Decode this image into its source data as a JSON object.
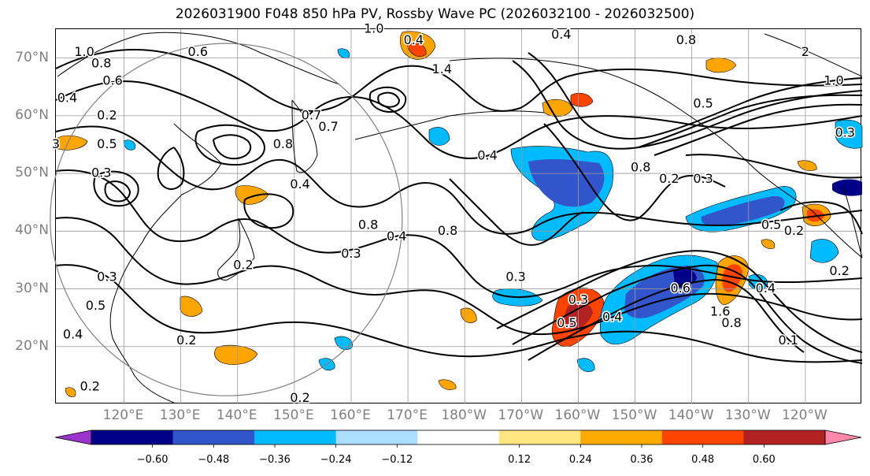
{
  "title": "2026031900 F048 850 hPa PV, Rossby Wave PC (2026032100 - 2026032500)",
  "map": {
    "projection": "cylindrical",
    "lon_range_east": [
      108,
      250
    ],
    "lat_range": [
      10,
      75
    ],
    "lat_ticks": [
      {
        "value": 70,
        "label": "70°N"
      },
      {
        "value": 60,
        "label": "60°N"
      },
      {
        "value": 50,
        "label": "50°N"
      },
      {
        "value": 40,
        "label": "40°N"
      },
      {
        "value": 30,
        "label": "30°N"
      },
      {
        "value": 20,
        "label": "20°N"
      }
    ],
    "lon_ticks": [
      {
        "value": 120,
        "label": "120°E"
      },
      {
        "value": 130,
        "label": "130°E"
      },
      {
        "value": 140,
        "label": "140°E"
      },
      {
        "value": 150,
        "label": "150°E"
      },
      {
        "value": 160,
        "label": "160°E"
      },
      {
        "value": 170,
        "label": "170°E"
      },
      {
        "value": 180,
        "label": "180°W"
      },
      {
        "value": 190,
        "label": "170°W"
      },
      {
        "value": 200,
        "label": "160°W"
      },
      {
        "value": 210,
        "label": "150°W"
      },
      {
        "value": 220,
        "label": "140°W"
      },
      {
        "value": 230,
        "label": "130°W"
      },
      {
        "value": 240,
        "label": "120°W"
      }
    ],
    "region_circle": {
      "center_lon": 138,
      "center_lat": 42,
      "radius_deg": 31
    },
    "contour_labels": [
      {
        "lon": 113,
        "lat": 71,
        "text": "1.0"
      },
      {
        "lon": 116,
        "lat": 69,
        "text": "0.8"
      },
      {
        "lon": 118,
        "lat": 66,
        "text": "0.6"
      },
      {
        "lon": 110,
        "lat": 63,
        "text": "0.4"
      },
      {
        "lon": 133,
        "lat": 71,
        "text": "0.6"
      },
      {
        "lon": 117,
        "lat": 60,
        "text": "0.2"
      },
      {
        "lon": 108,
        "lat": 55,
        "text": "3"
      },
      {
        "lon": 117,
        "lat": 55,
        "text": "0.5"
      },
      {
        "lon": 116,
        "lat": 50,
        "text": "0.3"
      },
      {
        "lon": 148,
        "lat": 55,
        "text": "0.8"
      },
      {
        "lon": 151,
        "lat": 48,
        "text": "0.4"
      },
      {
        "lon": 156,
        "lat": 58,
        "text": "0.7"
      },
      {
        "lon": 153,
        "lat": 60,
        "text": "0.7"
      },
      {
        "lon": 163,
        "lat": 41,
        "text": "0.8"
      },
      {
        "lon": 168,
        "lat": 39,
        "text": "0.4"
      },
      {
        "lon": 177,
        "lat": 40,
        "text": "0.8"
      },
      {
        "lon": 160,
        "lat": 36,
        "text": "0.3"
      },
      {
        "lon": 141,
        "lat": 34,
        "text": "0.2"
      },
      {
        "lon": 117,
        "lat": 32,
        "text": "0.3"
      },
      {
        "lon": 115,
        "lat": 27,
        "text": "0.5"
      },
      {
        "lon": 111,
        "lat": 22,
        "text": "0.4"
      },
      {
        "lon": 114,
        "lat": 13,
        "text": "0.2"
      },
      {
        "lon": 131,
        "lat": 21,
        "text": "0.2"
      },
      {
        "lon": 151,
        "lat": 11,
        "text": "0.2"
      },
      {
        "lon": 164,
        "lat": 75,
        "text": "1.0"
      },
      {
        "lon": 171,
        "lat": 73,
        "text": "0.4"
      },
      {
        "lon": 176,
        "lat": 68,
        "text": "1.4"
      },
      {
        "lon": 184,
        "lat": 53,
        "text": "0.4"
      },
      {
        "lon": 189,
        "lat": 32,
        "text": "0.3"
      },
      {
        "lon": 197,
        "lat": 74,
        "text": "0.4"
      },
      {
        "lon": 219,
        "lat": 73,
        "text": "0.8"
      },
      {
        "lon": 211,
        "lat": 51,
        "text": "0.8"
      },
      {
        "lon": 216,
        "lat": 49,
        "text": "0.2"
      },
      {
        "lon": 222,
        "lat": 49,
        "text": "0.3"
      },
      {
        "lon": 222,
        "lat": 62,
        "text": "0.5"
      },
      {
        "lon": 245,
        "lat": 66,
        "text": "1.0"
      },
      {
        "lon": 240,
        "lat": 71,
        "text": "2"
      },
      {
        "lon": 247,
        "lat": 57,
        "text": "0.3"
      },
      {
        "lon": 234,
        "lat": 41,
        "text": "0.5"
      },
      {
        "lon": 238,
        "lat": 40,
        "text": "0.2"
      },
      {
        "lon": 246,
        "lat": 33,
        "text": "0.2"
      },
      {
        "lon": 233,
        "lat": 30,
        "text": "0.4"
      },
      {
        "lon": 218,
        "lat": 30,
        "text": "0.6"
      },
      {
        "lon": 225,
        "lat": 26,
        "text": "1.6"
      },
      {
        "lon": 227,
        "lat": 24,
        "text": "0.8"
      },
      {
        "lon": 237,
        "lat": 21,
        "text": "0.1"
      },
      {
        "lon": 200,
        "lat": 28,
        "text": "0.3"
      },
      {
        "lon": 198,
        "lat": 24,
        "text": "0.5"
      },
      {
        "lon": 206,
        "lat": 25,
        "text": "0.4"
      }
    ]
  },
  "colorbar": {
    "ticks": [
      "−0.60",
      "−0.48",
      "−0.36",
      "−0.24",
      "−0.12",
      "0.12",
      "0.24",
      "0.36",
      "0.48",
      "0.60"
    ],
    "tick_values": [
      -0.6,
      -0.48,
      -0.36,
      -0.24,
      -0.12,
      0.12,
      0.24,
      0.36,
      0.48,
      0.6
    ],
    "under_color": "#9933cc",
    "over_color": "#ff88aa",
    "colors": [
      "#9933cc",
      "#000088",
      "#3355cc",
      "#00bbff",
      "#aaddff",
      "#ffffff",
      "#ffe680",
      "#ffaa00",
      "#ff4400",
      "#b22222",
      "#ff88aa"
    ]
  },
  "anomaly_colors": {
    "orange": "#ffa500",
    "red": "#ff4400",
    "darkred": "#b22222",
    "lightblue": "#00bbff",
    "blue": "#3355cc",
    "navy": "#000088"
  }
}
